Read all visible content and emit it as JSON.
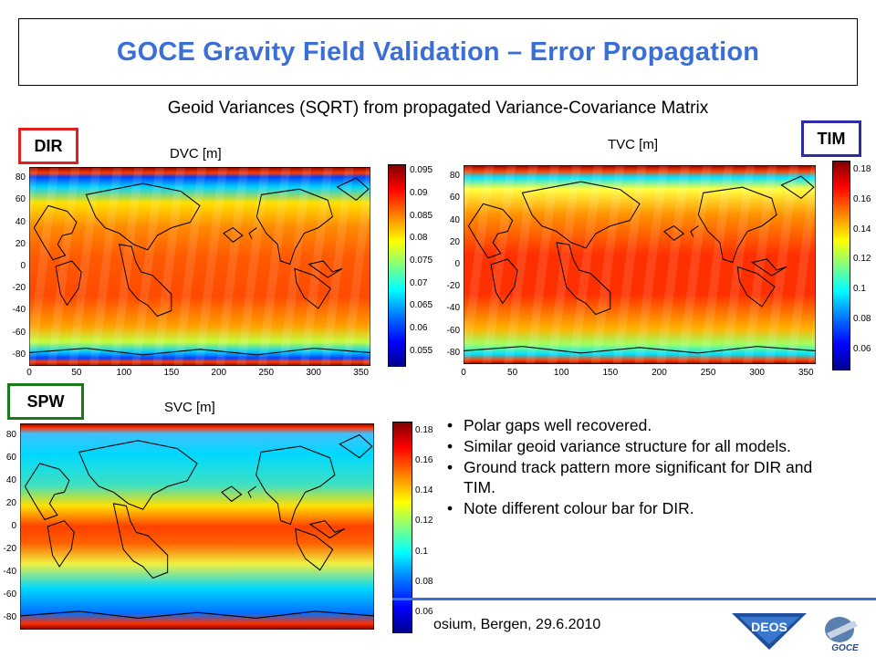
{
  "title": "GOCE Gravity Field Validation – Error Propagation",
  "subtitle": "Geoid Variances (SQRT) from propagated Variance-Covariance Matrix",
  "panels": {
    "dir": {
      "tag": "DIR",
      "tag_color": "#e02020",
      "title": "DVC [m]",
      "colorbar_ticks": [
        "0.095",
        "0.09",
        "0.085",
        "0.08",
        "0.075",
        "0.07",
        "0.065",
        "0.06",
        "0.055"
      ]
    },
    "tim": {
      "tag": "TIM",
      "tag_color": "#2c2ca8",
      "title": "TVC [m]",
      "colorbar_ticks": [
        "0.18",
        "0.16",
        "0.14",
        "0.12",
        "0.1",
        "0.08",
        "0.06"
      ]
    },
    "spw": {
      "tag": "SPW",
      "tag_color": "#1a7a1a",
      "title": "SVC [m]",
      "colorbar_ticks": [
        "0.18",
        "0.16",
        "0.14",
        "0.12",
        "0.1",
        "0.08",
        "0.06"
      ]
    }
  },
  "y_ticks": [
    "80",
    "60",
    "40",
    "20",
    "0",
    "-20",
    "-40",
    "-60",
    "-80"
  ],
  "x_ticks": [
    "0",
    "50",
    "100",
    "150",
    "200",
    "250",
    "300",
    "350"
  ],
  "bullets": [
    "Polar gaps well recovered.",
    "Similar geoid variance structure for all models.",
    "Ground track pattern more significant for DIR and TIM.",
    "Note different colour bar for DIR."
  ],
  "footer": "osium, Bergen, 29.6.2010",
  "logos": {
    "deos": "DEOS",
    "goce": "GOCE"
  },
  "colors": {
    "title": "#3a6fd8",
    "accent_line": "#3a6fd8"
  }
}
